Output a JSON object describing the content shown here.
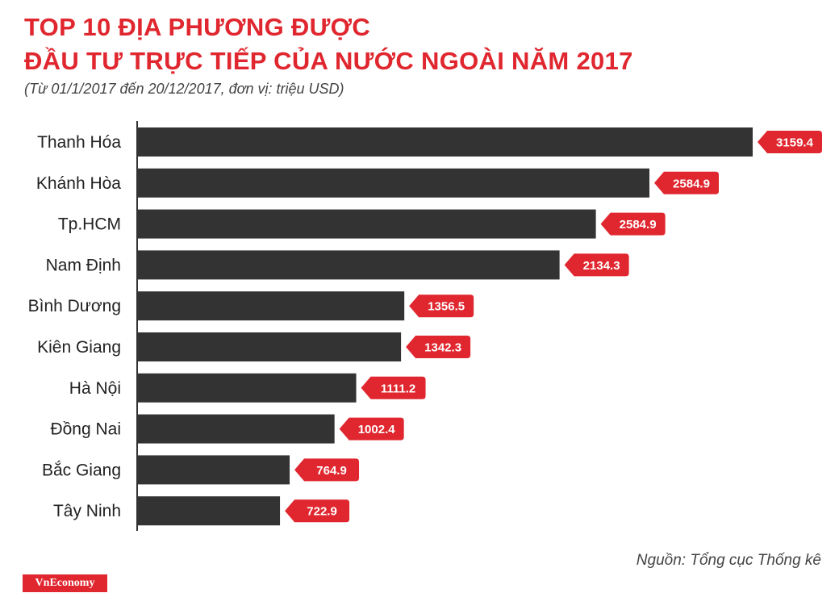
{
  "header": {
    "title_line1": "TOP 10 ĐỊA PHƯƠNG ĐƯỢC",
    "title_line2": "ĐẦU TƯ TRỰC TIẾP CỦA NƯỚC NGOÀI NĂM 2017",
    "subtitle": "(Từ 01/1/2017 đến 20/12/2017, đơn vị: triệu USD)"
  },
  "footer": {
    "source": "Nguồn: Tổng cục Thống kê",
    "logo_text": "VnEconomy"
  },
  "colors": {
    "bar": "#333333",
    "accent": "#e0262e",
    "axis": "#333333"
  },
  "chart_data": {
    "type": "bar",
    "orientation": "horizontal",
    "title": "TOP 10 ĐỊA PHƯƠNG ĐƯỢC ĐẦU TƯ TRỰC TIẾP CỦA NƯỚC NGOÀI NĂM 2017",
    "subtitle": "(Từ 01/1/2017 đến 20/12/2017, đơn vị: triệu USD)",
    "categories": [
      "Thanh Hóa",
      "Khánh Hòa",
      "Tp.HCM",
      "Nam Định",
      "Bình Dương",
      "Kiên Giang",
      "Hà Nội",
      "Đồng Nai",
      "Bắc Giang",
      "Tây Ninh"
    ],
    "values": [
      3159.4,
      2584.9,
      2584.9,
      2134.3,
      1356.5,
      1342.3,
      1111.2,
      1002.4,
      764.9,
      722.9
    ],
    "bar_lengths": [
      3159.4,
      2629.4,
      2354.5,
      2168.2,
      1371.3,
      1354.5,
      1124.4,
      1013.1,
      782.8,
      733.2
    ],
    "value_labels": [
      "3159.4",
      "2584.9",
      "2584.9",
      "2134.3",
      "1356.5",
      "1342.3",
      "1111.2",
      "1002.4",
      "764.9",
      "722.9"
    ],
    "xlabel": "",
    "ylabel": "",
    "grid": false,
    "legend": "none"
  }
}
